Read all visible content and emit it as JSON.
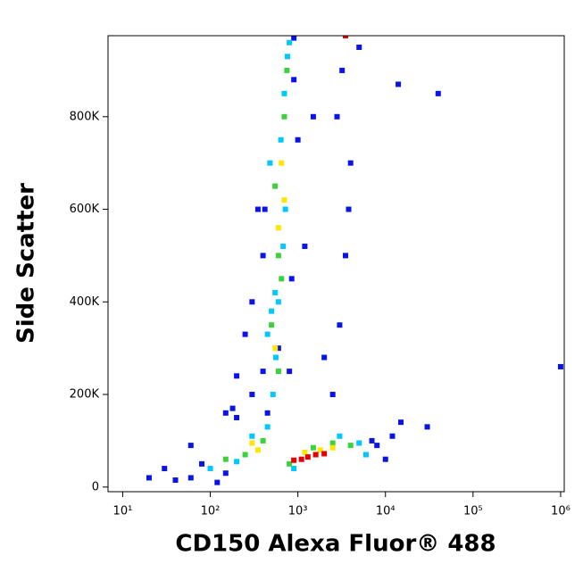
{
  "chart_data": {
    "type": "scatter",
    "xlabel": "CD150 Alexa Fluor® 488",
    "ylabel": "Side Scatter",
    "xscale": "log",
    "xlim": [
      6.8,
      1100000
    ],
    "ylim": [
      -10000,
      975000
    ],
    "xticks": [
      {
        "value": 10,
        "label": "10¹"
      },
      {
        "value": 100,
        "label": "10²"
      },
      {
        "value": 1000,
        "label": "10³"
      },
      {
        "value": 10000,
        "label": "10⁴"
      },
      {
        "value": 100000,
        "label": "10⁵"
      },
      {
        "value": 1000000,
        "label": "10⁶"
      }
    ],
    "yticks": [
      0,
      {
        "value": 200000,
        "label": "200K"
      },
      {
        "value": 400000,
        "label": "400K"
      },
      {
        "value": 600000,
        "label": "600K"
      },
      {
        "value": 800000,
        "label": "800K"
      }
    ],
    "series": [
      {
        "color": "#0a14e6",
        "x": [
          20,
          30,
          40,
          60,
          80,
          120,
          150,
          60,
          200,
          300,
          400,
          600,
          2500,
          3000,
          3500,
          4000,
          2800,
          3200,
          3800,
          2000,
          8000,
          12000,
          15000,
          10000,
          14000,
          400,
          350,
          300,
          900,
          1200,
          1500,
          1000,
          40000,
          1000000,
          250,
          200,
          180,
          150,
          900,
          7000,
          5000,
          30000,
          450,
          420,
          800,
          850
        ],
        "y": [
          20000,
          40000,
          15000,
          20000,
          50000,
          10000,
          30000,
          90000,
          150000,
          200000,
          250000,
          300000,
          200000,
          350000,
          500000,
          700000,
          800000,
          900000,
          600000,
          280000,
          90000,
          110000,
          140000,
          60000,
          870000,
          500000,
          600000,
          400000,
          880000,
          520000,
          800000,
          750000,
          850000,
          260000,
          330000,
          240000,
          170000,
          160000,
          970000,
          100000,
          950000,
          130000,
          160000,
          600000,
          250000,
          450000
        ]
      },
      {
        "color": "#00c8ff",
        "x": [
          100,
          200,
          300,
          450,
          3000,
          5000,
          6000,
          900,
          520,
          560,
          600,
          680,
          720,
          480,
          500,
          640,
          700,
          760,
          800,
          450,
          550
        ],
        "y": [
          40000,
          55000,
          110000,
          130000,
          110000,
          95000,
          70000,
          40000,
          200000,
          280000,
          400000,
          520000,
          600000,
          700000,
          380000,
          750000,
          850000,
          930000,
          960000,
          330000,
          420000
        ]
      },
      {
        "color": "#3cd23c",
        "x": [
          800,
          2500,
          4000,
          1500,
          250,
          400,
          150,
          600,
          550,
          700,
          650,
          500,
          600,
          750
        ],
        "y": [
          50000,
          95000,
          90000,
          85000,
          70000,
          100000,
          60000,
          500000,
          650000,
          800000,
          450000,
          350000,
          250000,
          900000
        ]
      },
      {
        "color": "#ffe600",
        "x": [
          1200,
          1800,
          2500,
          700,
          600,
          650,
          300,
          350,
          550
        ],
        "y": [
          75000,
          80000,
          85000,
          620000,
          560000,
          700000,
          95000,
          80000,
          300000
        ]
      },
      {
        "color": "#e60000",
        "x": [
          1100,
          1300,
          1600,
          900,
          2000,
          3500
        ],
        "y": [
          60000,
          65000,
          70000,
          58000,
          72000,
          975000
        ]
      }
    ]
  }
}
